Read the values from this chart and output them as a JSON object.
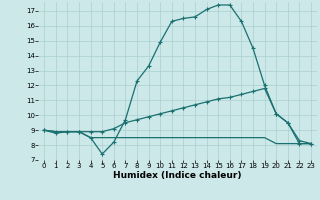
{
  "xlabel": "Humidex (Indice chaleur)",
  "bg_color": "#cce8e8",
  "line_color": "#1a7070",
  "grid_color": "#aacfcf",
  "xlim": [
    -0.5,
    23.5
  ],
  "ylim": [
    7,
    17.6
  ],
  "xticks": [
    0,
    1,
    2,
    3,
    4,
    5,
    6,
    7,
    8,
    9,
    10,
    11,
    12,
    13,
    14,
    15,
    16,
    17,
    18,
    19,
    20,
    21,
    22,
    23
  ],
  "yticks": [
    7,
    8,
    9,
    10,
    11,
    12,
    13,
    14,
    15,
    16,
    17
  ],
  "line1_x": [
    0,
    1,
    2,
    3,
    4,
    5,
    6,
    7,
    8,
    9,
    10,
    11,
    12,
    13,
    14,
    15,
    16,
    17,
    18,
    19,
    20,
    21,
    22,
    23
  ],
  "line1_y": [
    9.0,
    8.8,
    8.9,
    8.9,
    8.5,
    7.4,
    8.2,
    9.7,
    12.3,
    13.3,
    14.9,
    16.3,
    16.5,
    16.6,
    17.1,
    17.4,
    17.4,
    16.3,
    14.5,
    12.0,
    10.1,
    9.5,
    8.1,
    8.1
  ],
  "line2_x": [
    0,
    1,
    2,
    3,
    4,
    5,
    6,
    7,
    8,
    9,
    10,
    11,
    12,
    13,
    14,
    15,
    16,
    17,
    18,
    19,
    20,
    21,
    22,
    23
  ],
  "line2_y": [
    9.0,
    8.9,
    8.9,
    8.9,
    8.9,
    8.9,
    9.1,
    9.5,
    9.7,
    9.9,
    10.1,
    10.3,
    10.5,
    10.7,
    10.9,
    11.1,
    11.2,
    11.4,
    11.6,
    11.8,
    10.1,
    9.5,
    8.3,
    8.1
  ],
  "line3_x": [
    0,
    1,
    2,
    3,
    4,
    5,
    6,
    7,
    8,
    9,
    10,
    11,
    12,
    13,
    14,
    15,
    16,
    17,
    18,
    19,
    20,
    21,
    22,
    23
  ],
  "line3_y": [
    9.0,
    8.9,
    8.9,
    8.9,
    8.5,
    8.5,
    8.5,
    8.5,
    8.5,
    8.5,
    8.5,
    8.5,
    8.5,
    8.5,
    8.5,
    8.5,
    8.5,
    8.5,
    8.5,
    8.5,
    8.1,
    8.1,
    8.1,
    8.1
  ],
  "markersize": 3,
  "linewidth": 0.9,
  "tick_fontsize": 5.0,
  "label_fontsize": 6.5
}
